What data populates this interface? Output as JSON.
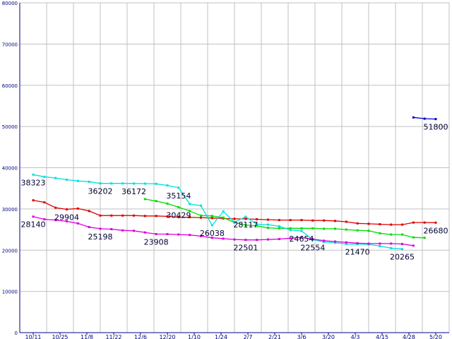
{
  "chart_data": {
    "type": "line",
    "title": "",
    "xlabel": "",
    "ylabel": "",
    "ylim": [
      0,
      80000
    ],
    "yticks": [
      "0",
      "10000",
      "20000",
      "30000",
      "40000",
      "50000",
      "60000",
      "70000",
      "80000"
    ],
    "categories": [
      "10/11",
      "10/25",
      "11/8",
      "11/22",
      "12/6",
      "12/20",
      "1/10",
      "1/24",
      "2/7",
      "2/21",
      "3/6",
      "3/20",
      "4/3",
      "4/15",
      "4/28",
      "5/20"
    ],
    "grid": true,
    "legend": "none",
    "series": [
      {
        "color": "#dd0000",
        "points": [
          [
            0,
            32100
          ],
          [
            1,
            31600
          ],
          [
            2,
            30300
          ],
          [
            3,
            29904
          ],
          [
            4,
            30100
          ],
          [
            5,
            29500
          ],
          [
            6,
            28400
          ],
          [
            7,
            28400
          ],
          [
            8,
            28400
          ],
          [
            9,
            28400
          ],
          [
            10,
            28300
          ],
          [
            11,
            28300
          ],
          [
            12,
            28200
          ],
          [
            13,
            28000
          ],
          [
            14,
            28000
          ],
          [
            15,
            27900
          ],
          [
            16,
            27800
          ],
          [
            17,
            27700
          ],
          [
            18,
            27600
          ],
          [
            19,
            27600
          ],
          [
            20,
            27500
          ],
          [
            21,
            27400
          ],
          [
            22,
            27300
          ],
          [
            23,
            27300
          ],
          [
            24,
            27300
          ],
          [
            25,
            27200
          ],
          [
            26,
            27200
          ],
          [
            27,
            27100
          ],
          [
            28,
            26900
          ],
          [
            29,
            26500
          ],
          [
            30,
            26400
          ],
          [
            31,
            26300
          ],
          [
            32,
            26200
          ],
          [
            33,
            26200
          ],
          [
            34,
            26700
          ],
          [
            35,
            26700
          ],
          [
            36,
            26680
          ]
        ]
      },
      {
        "color": "#00dd00",
        "points": [
          [
            10,
            32400
          ],
          [
            11,
            31900
          ],
          [
            12,
            31300
          ],
          [
            13,
            30429
          ],
          [
            14,
            29500
          ],
          [
            15,
            28400
          ],
          [
            16,
            28300
          ],
          [
            17,
            27900
          ],
          [
            18,
            26700
          ],
          [
            19,
            26100
          ],
          [
            20,
            25900
          ],
          [
            21,
            25400
          ],
          [
            22,
            25300
          ],
          [
            23,
            25300
          ],
          [
            24,
            25300
          ],
          [
            25,
            25300
          ],
          [
            26,
            25200
          ],
          [
            27,
            25200
          ],
          [
            28,
            25000
          ],
          [
            29,
            24800
          ],
          [
            30,
            24700
          ],
          [
            31,
            24100
          ],
          [
            32,
            23800
          ],
          [
            33,
            23800
          ],
          [
            34,
            23100
          ],
          [
            35,
            23000
          ]
        ]
      },
      {
        "color": "#00e0e0",
        "points": [
          [
            0,
            38323
          ],
          [
            1,
            37800
          ],
          [
            2,
            37500
          ],
          [
            3,
            37100
          ],
          [
            4,
            36800
          ],
          [
            5,
            36600
          ],
          [
            6,
            36202
          ],
          [
            7,
            36200
          ],
          [
            8,
            36200
          ],
          [
            9,
            36172
          ],
          [
            10,
            36150
          ],
          [
            11,
            36100
          ],
          [
            12,
            35700
          ],
          [
            13,
            35154
          ],
          [
            14,
            31200
          ],
          [
            15,
            30800
          ],
          [
            16,
            26038
          ],
          [
            17,
            29400
          ],
          [
            18,
            26800
          ],
          [
            19,
            28117
          ],
          [
            20,
            26300
          ],
          [
            21,
            26200
          ],
          [
            22,
            25800
          ],
          [
            23,
            24900
          ],
          [
            24,
            24654
          ],
          [
            25,
            22554
          ],
          [
            26,
            22000
          ],
          [
            27,
            21800
          ],
          [
            28,
            21500
          ],
          [
            29,
            21470
          ],
          [
            30,
            21400
          ],
          [
            31,
            21000
          ],
          [
            32,
            20500
          ],
          [
            33,
            20265
          ]
        ]
      },
      {
        "color": "#dd00dd",
        "points": [
          [
            0,
            28140
          ],
          [
            1,
            27500
          ],
          [
            2,
            27300
          ],
          [
            3,
            27000
          ],
          [
            4,
            26500
          ],
          [
            5,
            25600
          ],
          [
            6,
            25198
          ],
          [
            7,
            25100
          ],
          [
            8,
            24800
          ],
          [
            9,
            24700
          ],
          [
            10,
            24300
          ],
          [
            11,
            23908
          ],
          [
            12,
            23900
          ],
          [
            13,
            23800
          ],
          [
            14,
            23700
          ],
          [
            15,
            23400
          ],
          [
            16,
            23000
          ],
          [
            17,
            22800
          ],
          [
            18,
            22600
          ],
          [
            19,
            22501
          ],
          [
            20,
            22500
          ],
          [
            21,
            22600
          ],
          [
            22,
            22700
          ],
          [
            23,
            22900
          ],
          [
            24,
            23100
          ],
          [
            25,
            22700
          ],
          [
            26,
            22300
          ],
          [
            27,
            22100
          ],
          [
            28,
            21900
          ],
          [
            29,
            21700
          ],
          [
            30,
            21600
          ],
          [
            31,
            21600
          ],
          [
            32,
            21600
          ],
          [
            33,
            21500
          ],
          [
            34,
            21100
          ]
        ]
      },
      {
        "color": "#0000cc",
        "points": [
          [
            34,
            52200
          ],
          [
            35,
            51900
          ],
          [
            36,
            51800
          ]
        ]
      }
    ],
    "annotations": [
      {
        "text": "38323",
        "series": 2,
        "point": 0
      },
      {
        "text": "28140",
        "series": 3,
        "point": 0
      },
      {
        "text": "29904",
        "series": 0,
        "point": 3
      },
      {
        "text": "36202",
        "series": 2,
        "point": 6
      },
      {
        "text": "25198",
        "series": 3,
        "point": 6
      },
      {
        "text": "36172",
        "series": 2,
        "point": 9
      },
      {
        "text": "23908",
        "series": 3,
        "point": 11
      },
      {
        "text": "35154",
        "series": 2,
        "point": 13
      },
      {
        "text": "30429",
        "series": 1,
        "point": 3
      },
      {
        "text": "26038",
        "series": 2,
        "point": 16
      },
      {
        "text": "28117",
        "series": 2,
        "point": 19
      },
      {
        "text": "22501",
        "series": 3,
        "point": 19
      },
      {
        "text": "24654",
        "series": 2,
        "point": 24
      },
      {
        "text": "22554",
        "series": 2,
        "point": 25
      },
      {
        "text": "21470",
        "series": 2,
        "point": 29
      },
      {
        "text": "51800",
        "series": 4,
        "point": 2
      },
      {
        "text": "26680",
        "series": 0,
        "point": 36
      },
      {
        "text": "20265",
        "series": 2,
        "point": 33
      }
    ]
  }
}
